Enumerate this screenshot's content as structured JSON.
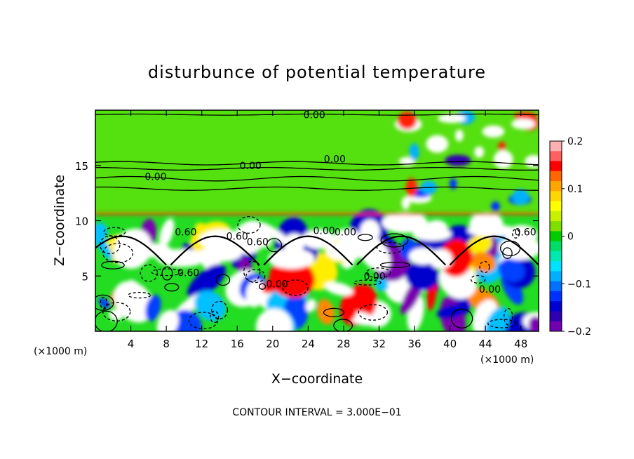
{
  "chart_data": {
    "type": "heatmap",
    "title": "disturbunce of potential temperature",
    "xlabel": "X−coordinate",
    "ylabel": "Z−coordinate",
    "x_unit": "(×1000 m)",
    "y_unit": "(×1000 m)",
    "x_ticks": [
      "4",
      "8",
      "12",
      "16",
      "20",
      "24",
      "28",
      "32",
      "36",
      "40",
      "44",
      "48"
    ],
    "y_ticks": [
      "5",
      "10",
      "15"
    ],
    "xlim": [
      0,
      50
    ],
    "ylim": [
      0,
      20
    ],
    "colorbar": {
      "ticks": [
        "0.2",
        "0.1",
        "0",
        "−0.1",
        "−0.2"
      ],
      "range": [
        -0.2,
        0.2
      ],
      "colors": [
        "#ffb0b0",
        "#ff6060",
        "#ff0000",
        "#ff6600",
        "#ffa500",
        "#ffd700",
        "#ffff00",
        "#c8f000",
        "#7fe000",
        "#00cc00",
        "#00dd66",
        "#00e8b0",
        "#00e0ff",
        "#00b0ff",
        "#0070ff",
        "#0030ff",
        "#0000d0",
        "#3000b0",
        "#7000b0"
      ]
    },
    "contour_labels": [
      "0.00",
      "0.00",
      "0.00",
      "0.00",
      "0.00",
      "0.60",
      "0.00",
      "0.60",
      "0.60",
      "0.00",
      "0.00",
      "0.60",
      "0.60",
      "0.00"
    ],
    "footer": "CONTOUR INTERVAL = 3.000E−01",
    "grid": false
  },
  "colors": {
    "background": "#00dd22",
    "upper_band": "#44e000",
    "neutral": "#ffffff",
    "contour": "#000000"
  }
}
